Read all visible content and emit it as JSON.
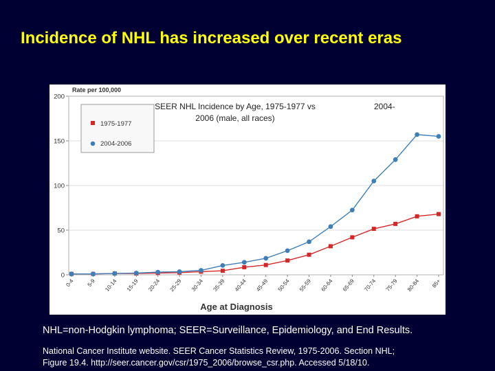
{
  "slide": {
    "title": "Incidence of NHL has increased over recent eras",
    "abbreviations": "NHL=non-Hodgkin lymphoma; SEER=Surveillance, Epidemiology, and End Results.",
    "citation_line1": "National Cancer Institute website. SEER Cancer Statistics Review, 1975-2006. Section NHL;",
    "citation_line2": "Figure 19.4. http://seer.cancer.gov/csr/1975_2006/browse_csr.php. Accessed 5/18/10."
  },
  "colors": {
    "background": "#000033",
    "title": "#ffff00",
    "series_1975": "#d62728",
    "series_2004": "#3e7fb8"
  },
  "chart_data": {
    "type": "line",
    "title_line1": "SEER NHL Incidence by Age, 1975-1977 vs",
    "title_line2": "2006 (male, all races)",
    "title_fragment": "2004-",
    "ylabel": "Rate per 100,000",
    "xlabel": "Age at Diagnosis",
    "ylim": [
      0,
      200
    ],
    "yticks": [
      "0",
      "50",
      "100",
      "150",
      "200"
    ],
    "categories": [
      "0-4",
      "5-9",
      "10-14",
      "15-19",
      "20-24",
      "25-29",
      "30-34",
      "35-39",
      "40-44",
      "45-49",
      "50-54",
      "55-59",
      "60-64",
      "65-69",
      "70-74",
      "75-79",
      "80-84",
      "85+"
    ],
    "legend_position": "top-left",
    "series": [
      {
        "name": "1975-1977",
        "marker": "square",
        "values": [
          1.0,
          1.0,
          1.5,
          1.5,
          2.0,
          2.5,
          3.5,
          4.5,
          8.5,
          11.0,
          16.0,
          22.5,
          32.0,
          42.0,
          51.5,
          57.0,
          65.5,
          68.0
        ]
      },
      {
        "name": "2004-2006",
        "marker": "circle",
        "values": [
          1.0,
          1.0,
          1.5,
          2.0,
          3.0,
          3.5,
          5.0,
          10.5,
          14.0,
          18.5,
          27.0,
          37.0,
          54.0,
          72.5,
          105.0,
          129.0,
          157.0,
          155.0
        ]
      }
    ]
  }
}
